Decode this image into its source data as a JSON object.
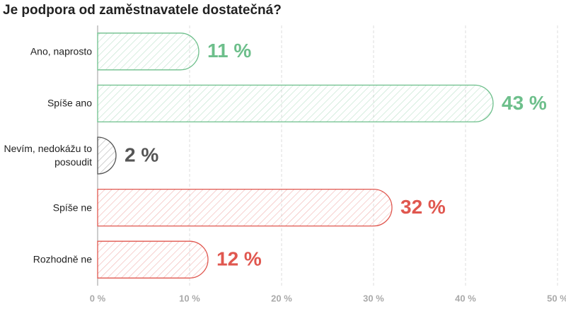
{
  "chart_data": {
    "type": "hbar",
    "title": "Je podpora od zaměstnavatele dostatečná?",
    "categories": [
      "Ano, naprosto",
      "Spíše ano",
      "Nevím, nedokážu to posoudit",
      "Spíše ne",
      "Rozhodně ne"
    ],
    "values": [
      11,
      43,
      2,
      32,
      12
    ],
    "value_labels": [
      "11 %",
      "43 %",
      "2 %",
      "32 %",
      "12 %"
    ],
    "colors": [
      "#6dbf8b",
      "#6dbf8b",
      "#555555",
      "#e0574f",
      "#e0574f"
    ],
    "xlim": [
      0,
      50
    ],
    "xticks": [
      {
        "value": 0,
        "label": "0 %"
      },
      {
        "value": 10,
        "label": "10 %"
      },
      {
        "value": 20,
        "label": "20 %"
      },
      {
        "value": 30,
        "label": "30 %"
      },
      {
        "value": 40,
        "label": "40 %"
      },
      {
        "value": 50,
        "label": "50 %"
      }
    ],
    "grid": true
  }
}
